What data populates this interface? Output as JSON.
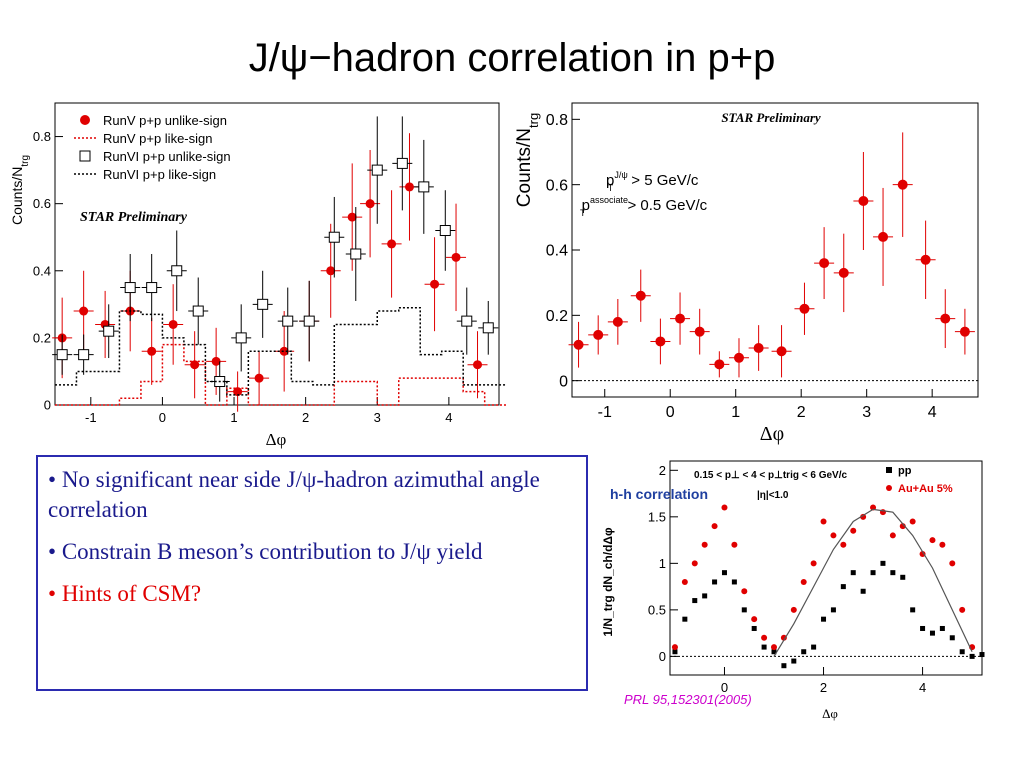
{
  "slide": {
    "title": "J/ψ−hadron correlation in p+p",
    "bullets": [
      {
        "text": "No significant near side J/ψ-hadron azimuthal angle correlation",
        "color": "#1a1a8c"
      },
      {
        "text": "Constrain B meson’s contribution to J/ψ yield",
        "color": "#1a1a8c"
      },
      {
        "text": "Hints of CSM?",
        "color": "#e00000"
      }
    ],
    "citation": "PRL 95,152301(2005)"
  },
  "chart_data": [
    {
      "type": "scatter",
      "ylabel": "Counts/N",
      "ylabel_sub": "trg",
      "xlabel": "Δφ",
      "xlim": [
        -1.5,
        4.7
      ],
      "ylim": [
        0,
        0.9
      ],
      "xticks": [
        -1,
        0,
        1,
        2,
        3,
        4
      ],
      "yticks": [
        0,
        0.2,
        0.4,
        0.6,
        0.8
      ],
      "annotation": "STAR Preliminary",
      "legend": [
        "RunV p+p unlike-sign",
        "RunV p+p like-sign",
        "RunVI p+p unlike-sign",
        "RunVI p+p like-sign"
      ],
      "series": [
        {
          "name": "RunV p+p unlike-sign",
          "style": "red-dot",
          "x": [
            -1.4,
            -1.1,
            -0.8,
            -0.45,
            -0.15,
            0.15,
            0.45,
            0.75,
            1.05,
            1.35,
            1.7,
            2.05,
            2.35,
            2.65,
            2.9,
            3.2,
            3.45,
            3.8,
            4.1,
            4.4
          ],
          "y": [
            0.2,
            0.28,
            0.24,
            0.28,
            0.16,
            0.24,
            0.12,
            0.13,
            0.04,
            0.08,
            0.16,
            0.25,
            0.4,
            0.56,
            0.6,
            0.48,
            0.65,
            0.36,
            0.44,
            0.12
          ],
          "err": [
            0.12,
            0.12,
            0.1,
            0.12,
            0.1,
            0.12,
            0.1,
            0.1,
            0.06,
            0.08,
            0.12,
            0.12,
            0.14,
            0.16,
            0.16,
            0.16,
            0.16,
            0.14,
            0.16,
            0.1
          ]
        },
        {
          "name": "RunV p+p like-sign",
          "style": "red-dotted-step",
          "x": [
            -1.5,
            -1.2,
            -0.9,
            -0.6,
            -0.3,
            0,
            0.3,
            0.6,
            0.9,
            1.2,
            1.5,
            1.8,
            2.1,
            2.4,
            2.7,
            3.0,
            3.3,
            3.6,
            3.9,
            4.2,
            4.5
          ],
          "y": [
            0,
            0,
            0,
            0.02,
            0.07,
            0.18,
            0.13,
            0,
            0.05,
            0,
            0,
            0,
            0,
            0.07,
            0.07,
            0,
            0.08,
            0.08,
            0.08,
            0.04,
            0
          ]
        },
        {
          "name": "RunVI p+p unlike-sign",
          "style": "open-square",
          "x": [
            -1.4,
            -1.1,
            -0.75,
            -0.45,
            -0.15,
            0.2,
            0.5,
            0.8,
            1.1,
            1.4,
            1.75,
            2.05,
            2.4,
            2.7,
            3.0,
            3.35,
            3.65,
            3.95,
            4.25,
            4.55
          ],
          "y": [
            0.15,
            0.15,
            0.22,
            0.35,
            0.35,
            0.4,
            0.28,
            0.07,
            0.2,
            0.3,
            0.25,
            0.25,
            0.5,
            0.45,
            0.7,
            0.72,
            0.65,
            0.52,
            0.25,
            0.23
          ],
          "err": [
            0.06,
            0.06,
            0.08,
            0.1,
            0.1,
            0.12,
            0.1,
            0.06,
            0.1,
            0.1,
            0.1,
            0.12,
            0.12,
            0.14,
            0.16,
            0.14,
            0.14,
            0.12,
            0.1,
            0.08
          ]
        },
        {
          "name": "RunVI p+p like-sign",
          "style": "black-dotted-step",
          "x": [
            -1.5,
            -1.2,
            -0.9,
            -0.6,
            -0.3,
            0,
            0.3,
            0.6,
            0.9,
            1.2,
            1.5,
            1.8,
            2.1,
            2.4,
            2.7,
            3.0,
            3.3,
            3.6,
            3.9,
            4.2,
            4.5
          ],
          "y": [
            0.06,
            0.1,
            0.1,
            0.28,
            0.27,
            0.2,
            0.18,
            0.07,
            0.03,
            0.16,
            0.16,
            0.07,
            0.06,
            0.24,
            0.24,
            0.28,
            0.29,
            0.15,
            0.16,
            0.06,
            0.06
          ]
        }
      ]
    },
    {
      "type": "scatter",
      "ylabel": "Counts/N",
      "ylabel_sub": "trg",
      "xlabel": "Δφ",
      "xlim": [
        -1.5,
        4.7
      ],
      "ylim": [
        -0.05,
        0.85
      ],
      "xticks": [
        -1,
        0,
        1,
        2,
        3,
        4
      ],
      "yticks": [
        0,
        0.2,
        0.4,
        0.6,
        0.8
      ],
      "annotation": "STAR Preliminary",
      "cut1_base": "p",
      "cut1_sup": "J/ψ",
      "cut1_sub": "T",
      "cut1_value": "> 5 GeV/c",
      "cut2_base": "p",
      "cut2_sup": "associate",
      "cut2_sub": "T",
      "cut2_value": "> 0.5 GeV/c",
      "baseline": 0,
      "series": [
        {
          "name": "",
          "style": "red-dot",
          "x": [
            -1.4,
            -1.1,
            -0.8,
            -0.45,
            -0.15,
            0.15,
            0.45,
            0.75,
            1.05,
            1.35,
            1.7,
            2.05,
            2.35,
            2.65,
            2.95,
            3.25,
            3.55,
            3.9,
            4.2,
            4.5
          ],
          "y": [
            0.11,
            0.14,
            0.18,
            0.26,
            0.12,
            0.19,
            0.15,
            0.05,
            0.07,
            0.1,
            0.09,
            0.22,
            0.36,
            0.33,
            0.55,
            0.44,
            0.6,
            0.37,
            0.19,
            0.15
          ],
          "err": [
            0.07,
            0.06,
            0.07,
            0.08,
            0.07,
            0.08,
            0.07,
            0.04,
            0.06,
            0.07,
            0.08,
            0.08,
            0.11,
            0.12,
            0.15,
            0.15,
            0.16,
            0.12,
            0.09,
            0.07
          ]
        }
      ]
    },
    {
      "type": "scatter",
      "ylabel": "1/N_trg dN_ch/dΔφ",
      "xlabel": "Δφ",
      "xlim": [
        -1.1,
        5.2
      ],
      "ylim": [
        -0.2,
        2.1
      ],
      "xticks": [
        0,
        2,
        4
      ],
      "yticks": [
        0,
        0.5,
        1,
        1.5,
        2
      ],
      "annotation": "0.15 < p⊥ < 4 < p⊥trig < 6 GeV/c",
      "inner_label": "|η|<1.0",
      "outer_label": "h-h correlation",
      "legend": [
        "pp",
        "Au+Au 5%"
      ],
      "baseline": 0,
      "series": [
        {
          "name": "pp",
          "style": "black-square",
          "x": [
            -1.0,
            -0.8,
            -0.6,
            -0.4,
            -0.2,
            0.0,
            0.2,
            0.4,
            0.6,
            0.8,
            1.0,
            1.2,
            1.4,
            1.6,
            1.8,
            2.0,
            2.2,
            2.4,
            2.6,
            2.8,
            3.0,
            3.2,
            3.4,
            3.6,
            3.8,
            4.0,
            4.2,
            4.4,
            4.6,
            4.8,
            5.0,
            5.2
          ],
          "y": [
            0.05,
            0.4,
            0.6,
            0.65,
            0.8,
            0.9,
            0.8,
            0.5,
            0.3,
            0.1,
            0.05,
            -0.1,
            -0.05,
            0.05,
            0.1,
            0.4,
            0.5,
            0.75,
            0.9,
            0.7,
            0.9,
            1.0,
            0.9,
            0.85,
            0.5,
            0.3,
            0.25,
            0.3,
            0.2,
            0.05,
            0.0,
            0.02
          ]
        },
        {
          "name": "Au+Au 5%",
          "style": "red-dot",
          "x": [
            -1.0,
            -0.8,
            -0.6,
            -0.4,
            -0.2,
            0.0,
            0.2,
            0.4,
            0.6,
            0.8,
            1.0,
            1.2,
            1.4,
            1.6,
            1.8,
            2.0,
            2.2,
            2.4,
            2.6,
            2.8,
            3.0,
            3.2,
            3.4,
            3.6,
            3.8,
            4.0,
            4.2,
            4.4,
            4.6,
            4.8,
            5.0
          ],
          "y": [
            0.1,
            0.8,
            1.0,
            1.2,
            1.4,
            1.6,
            1.2,
            0.7,
            0.4,
            0.2,
            0.1,
            0.2,
            0.5,
            0.8,
            1.0,
            1.45,
            1.3,
            1.2,
            1.35,
            1.5,
            1.6,
            1.55,
            1.3,
            1.4,
            1.45,
            1.1,
            1.25,
            1.2,
            1.0,
            0.5,
            0.1
          ]
        },
        {
          "name": "",
          "style": "line",
          "x": [
            1.0,
            1.4,
            1.8,
            2.2,
            2.6,
            3.0,
            3.4,
            3.8,
            4.2,
            4.6,
            5.0
          ],
          "y": [
            0.0,
            0.35,
            0.75,
            1.15,
            1.45,
            1.58,
            1.55,
            1.3,
            0.95,
            0.5,
            0.05
          ]
        }
      ]
    }
  ]
}
